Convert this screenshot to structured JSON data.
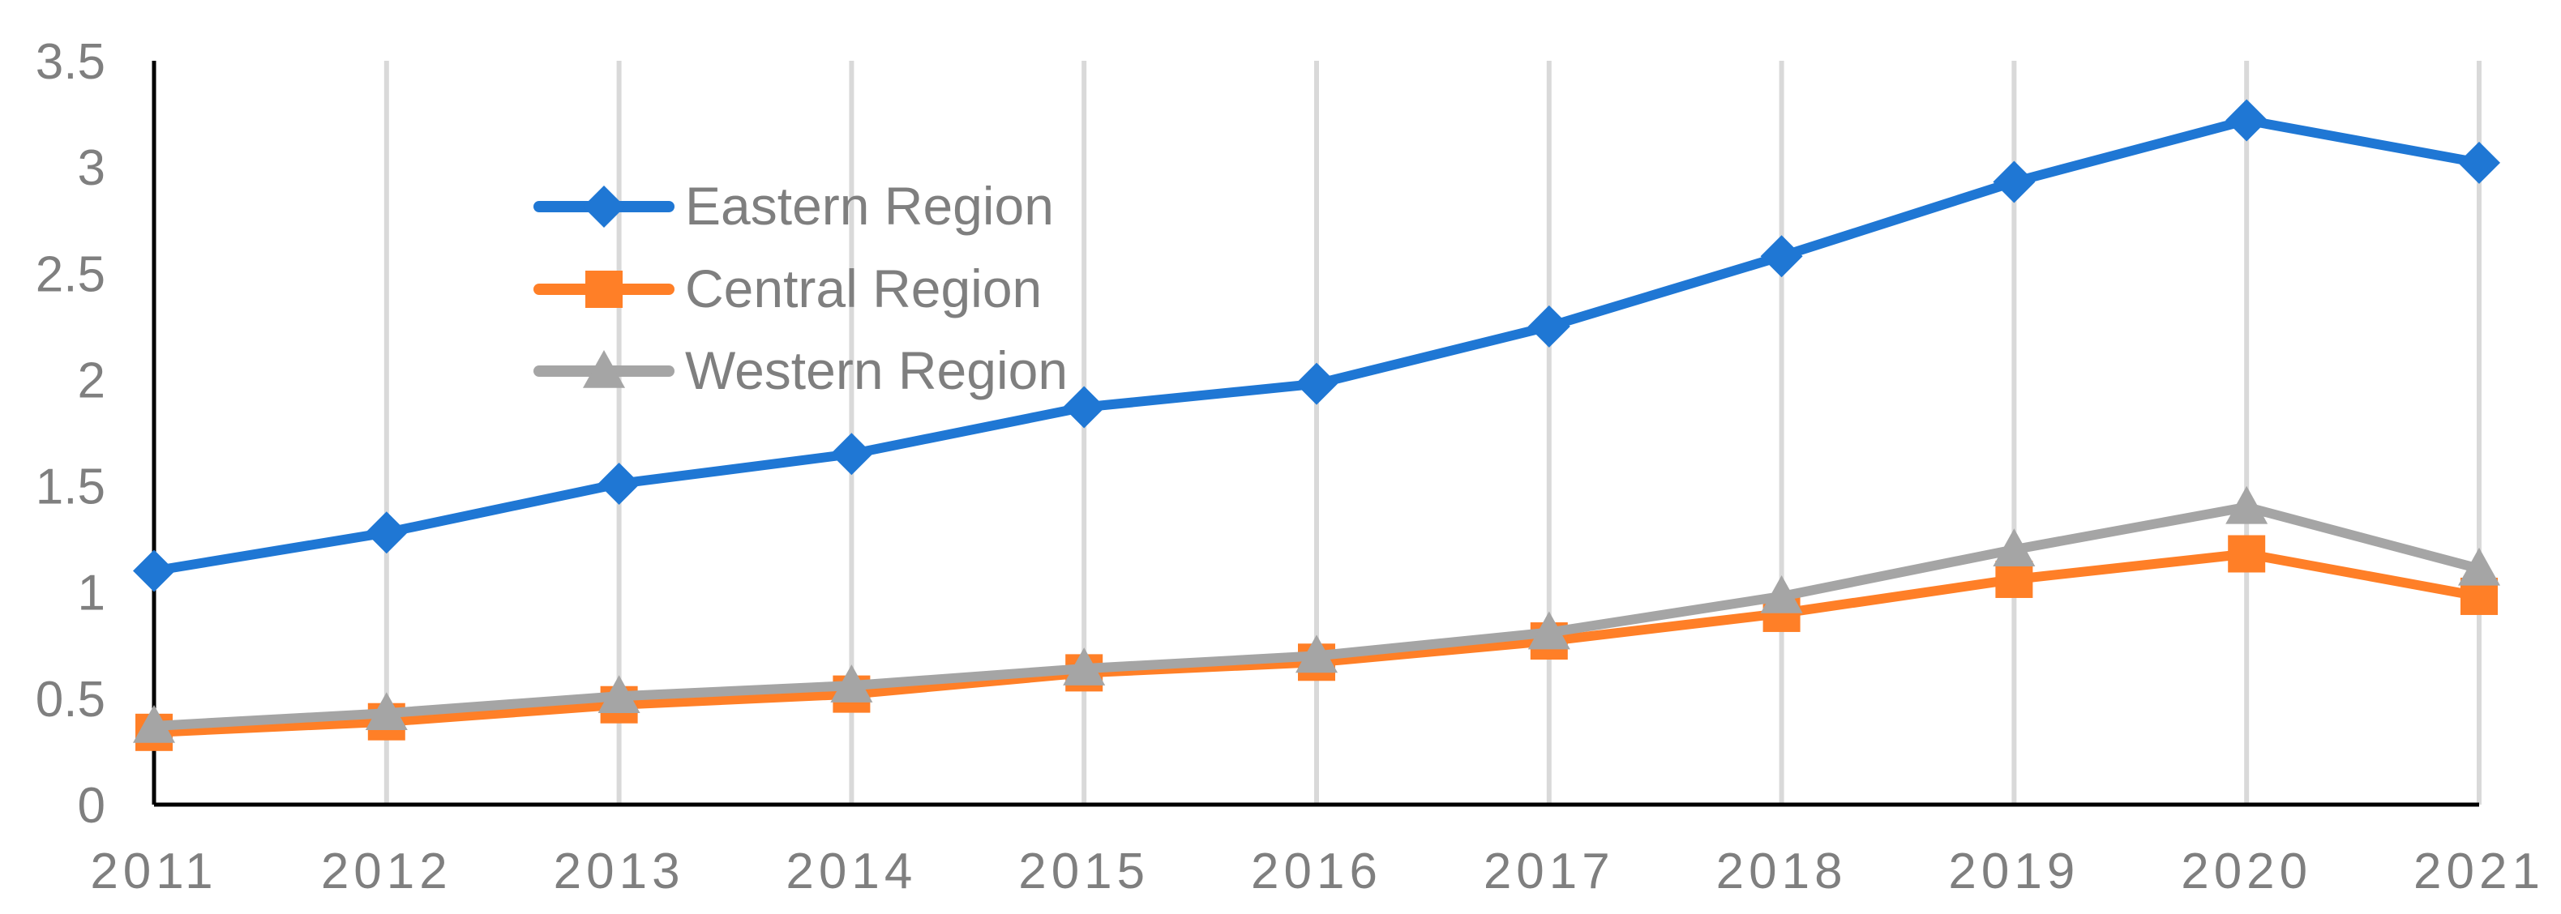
{
  "chart_data": {
    "type": "line",
    "title": "",
    "xlabel": "",
    "ylabel": "",
    "categories": [
      "2011",
      "2012",
      "2013",
      "2014",
      "2015",
      "2016",
      "2017",
      "2018",
      "2019",
      "2020",
      "2021"
    ],
    "ylim": [
      0,
      3.5
    ],
    "yticks": [
      0,
      0.5,
      1,
      1.5,
      2,
      2.5,
      3,
      3.5
    ],
    "ytick_labels": [
      "0",
      "0.5",
      "1",
      "1.5",
      "2",
      "2.5",
      "3",
      "3.5"
    ],
    "grid": "vertical",
    "legend_position": "top-left inside plot",
    "series": [
      {
        "name": "Eastern Region",
        "marker": "diamond",
        "color": "#1f77d4",
        "values": [
          1.1,
          1.28,
          1.51,
          1.65,
          1.87,
          1.98,
          2.25,
          2.58,
          2.93,
          3.22,
          3.02
        ]
      },
      {
        "name": "Central Region",
        "marker": "square",
        "color": "#ff7f27",
        "values": [
          0.34,
          0.39,
          0.47,
          0.52,
          0.62,
          0.67,
          0.77,
          0.9,
          1.06,
          1.18,
          0.98
        ]
      },
      {
        "name": "Western Region",
        "marker": "triangle",
        "color": "#a5a5a5",
        "values": [
          0.37,
          0.43,
          0.51,
          0.56,
          0.64,
          0.7,
          0.81,
          0.98,
          1.2,
          1.4,
          1.11
        ]
      }
    ]
  }
}
